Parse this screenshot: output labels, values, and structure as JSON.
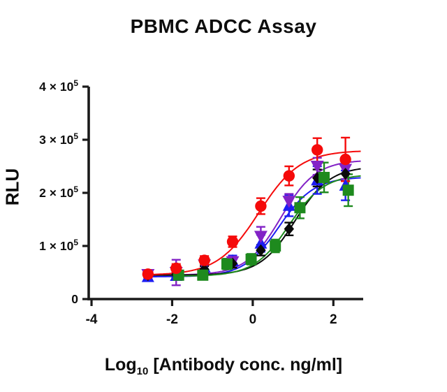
{
  "title": "PBMC ADCC Assay",
  "y_axis": {
    "label": "RLU"
  },
  "x_axis": {
    "label_main": "Log",
    "label_sub": "10",
    "label_rest": "[Antibody conc. ng/ml]"
  },
  "chart_data": {
    "type": "scatter",
    "title": "PBMC ADCC Assay",
    "xlabel": "Log10 [Antibody conc. ng/ml]",
    "ylabel": "RLU",
    "xlim": [
      -4.07,
      2.74
    ],
    "ylim": [
      0,
      400000
    ],
    "x_ticks": [
      -4,
      -2,
      0,
      2
    ],
    "y_ticks": [
      0,
      100000,
      200000,
      300000,
      400000
    ],
    "y_tick_labels": [
      {
        "text": "0",
        "exp": ""
      },
      {
        "text": "1 × 10",
        "exp": "5"
      },
      {
        "text": "2 × 10",
        "exp": "5"
      },
      {
        "text": "3 × 10",
        "exp": "5"
      },
      {
        "text": "4 × 10",
        "exp": "5"
      }
    ],
    "grid": false,
    "legend": "none",
    "curve_model": "4PL",
    "axis_color": "#1a1a1a",
    "series": [
      {
        "name": "red-circles",
        "marker": "circle",
        "color": "#f50a0a",
        "x": [
          -2.6,
          -1.9,
          -1.2,
          -0.5,
          0.2,
          0.9,
          1.6,
          2.3
        ],
        "y": [
          47000,
          58000,
          73000,
          108000,
          175000,
          232000,
          281000,
          263000
        ],
        "err": [
          6000,
          8000,
          8000,
          10000,
          15000,
          18000,
          22000,
          41000
        ],
        "fit": {
          "bottom": 45000,
          "top": 280000,
          "logEC50": 0.15,
          "hill": 0.85
        }
      },
      {
        "name": "violet-down-triangles",
        "marker": "triangle-down",
        "color": "#8322c6",
        "x": [
          -2.6,
          -1.9,
          -1.2,
          -0.5,
          0.2,
          0.9,
          1.6,
          2.3
        ],
        "y": [
          46000,
          50000,
          64000,
          70000,
          118000,
          184000,
          250000,
          244000
        ],
        "err": [
          5000,
          24000,
          10000,
          10000,
          18000,
          14000,
          16000,
          18000
        ],
        "fit": {
          "bottom": 45000,
          "top": 262000,
          "logEC50": 0.7,
          "hill": 1.0
        }
      },
      {
        "name": "blue-up-triangles",
        "marker": "triangle-up",
        "color": "#1d1df2",
        "x": [
          -2.6,
          -1.9,
          -1.2,
          -0.5,
          0.2,
          0.9,
          1.6,
          2.3
        ],
        "y": [
          42000,
          44000,
          60000,
          72000,
          105000,
          176000,
          224000,
          214000
        ],
        "err": [
          5000,
          6000,
          8000,
          10000,
          16000,
          20000,
          26000,
          28000
        ],
        "fit": {
          "bottom": 42000,
          "top": 230000,
          "logEC50": 0.65,
          "hill": 1.0
        }
      },
      {
        "name": "black-diamonds",
        "marker": "diamond",
        "color": "#0a0a0a",
        "x": [
          -2.6,
          -1.9,
          -1.2,
          -0.5,
          0.2,
          0.9,
          1.6,
          2.3
        ],
        "y": [
          45000,
          46000,
          56000,
          67000,
          92000,
          132000,
          228000,
          236000
        ],
        "err": [
          4000,
          5000,
          6000,
          8000,
          10000,
          12000,
          16000,
          14000
        ],
        "fit": {
          "bottom": 45000,
          "top": 250000,
          "logEC50": 1.05,
          "hill": 1.0
        }
      },
      {
        "name": "green-squares",
        "marker": "square",
        "color": "#1e8a1e",
        "x": [
          -1.84,
          -1.24,
          -0.64,
          -0.04,
          0.56,
          1.17,
          1.77,
          2.37
        ],
        "y": [
          45000,
          45000,
          66000,
          75000,
          100000,
          172000,
          229000,
          205000
        ],
        "err": [
          6000,
          6000,
          10000,
          10000,
          12000,
          20000,
          28000,
          30000
        ],
        "fit": {
          "bottom": 43000,
          "top": 235000,
          "logEC50": 0.9,
          "hill": 1.0
        }
      }
    ],
    "draw_order": [
      "blue-up-triangles",
      "violet-down-triangles",
      "black-diamonds",
      "green-squares",
      "red-circles"
    ]
  }
}
